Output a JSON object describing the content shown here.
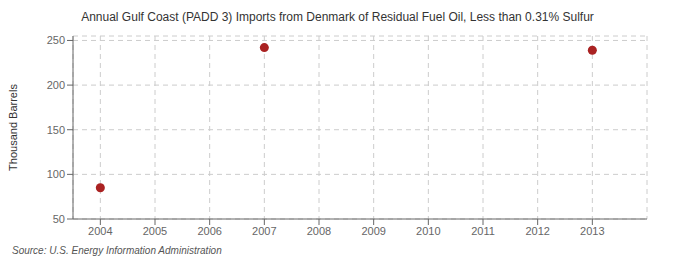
{
  "chart_data": {
    "type": "scatter",
    "title": "Annual Gulf Coast (PADD 3) Imports from Denmark of Residual Fuel Oil, Less than 0.31% Sulfur",
    "ylabel": "Thousand Barrels",
    "source": "Source: U.S. Energy Information Administration",
    "x": [
      2004,
      2007,
      2013
    ],
    "values": [
      85,
      242,
      239
    ],
    "color": "#aa2222",
    "marker": "circle",
    "xlim": [
      2003.5,
      2014.0
    ],
    "ylim": [
      50,
      255
    ],
    "xticks": [
      2004,
      2005,
      2006,
      2007,
      2008,
      2009,
      2010,
      2011,
      2012,
      2013
    ],
    "yticks": [
      50,
      100,
      150,
      200,
      250
    ],
    "grid": true
  }
}
